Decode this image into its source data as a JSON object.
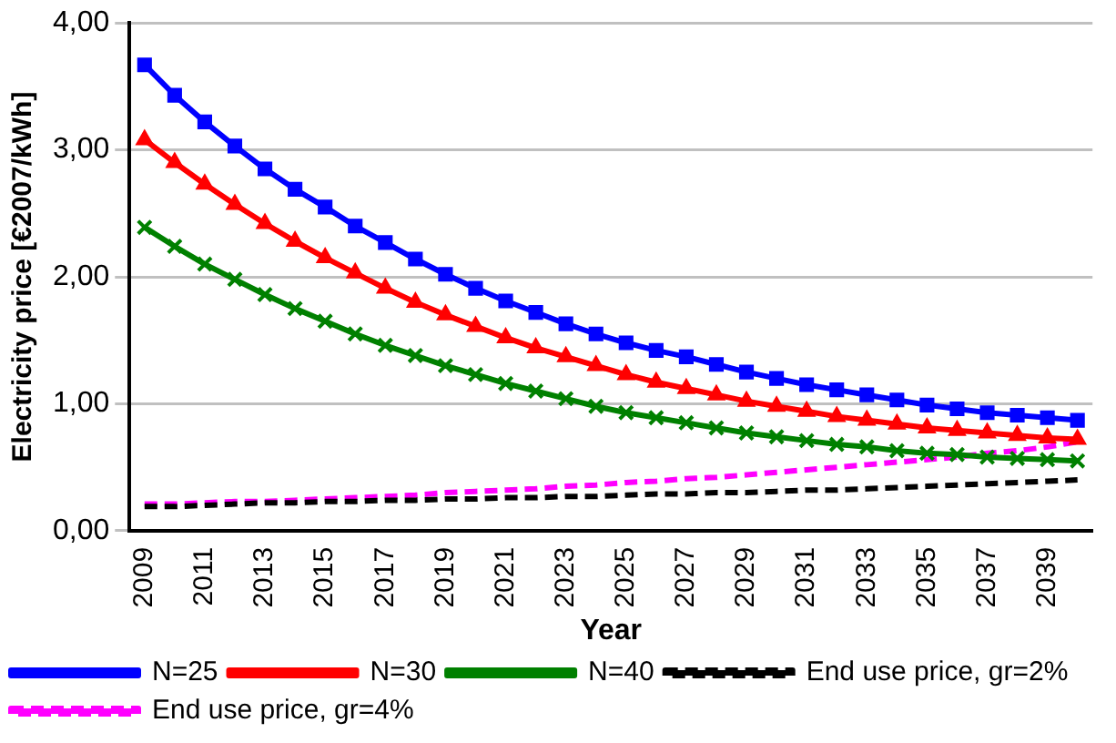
{
  "chart_data": {
    "type": "line",
    "xlabel": "Year",
    "ylabel": "Electricity price [€2007/kWh]",
    "categories": [
      "2009",
      null,
      "2011",
      null,
      "2013",
      null,
      "2015",
      null,
      "2017",
      null,
      "2019",
      null,
      "2021",
      null,
      "2023",
      null,
      "2025",
      null,
      "2027",
      null,
      "2029",
      null,
      "2031",
      null,
      "2033",
      null,
      "2035",
      null,
      "2037",
      null,
      "2039",
      null
    ],
    "ylim": [
      0,
      4
    ],
    "yticks": [
      {
        "value": 0,
        "label": "0,00"
      },
      {
        "value": 1,
        "label": "1,00"
      },
      {
        "value": 2,
        "label": "2,00"
      },
      {
        "value": 3,
        "label": "3,00"
      },
      {
        "value": 4,
        "label": "4,00"
      }
    ],
    "grid": "y",
    "legend": "bottom",
    "series": [
      {
        "name": "N=25",
        "color": "#0000ff",
        "marker": "square",
        "line_style": "solid",
        "values": [
          3.67,
          3.43,
          3.22,
          3.03,
          2.85,
          2.69,
          2.55,
          2.4,
          2.27,
          2.14,
          2.02,
          1.91,
          1.81,
          1.72,
          1.63,
          1.55,
          1.48,
          1.42,
          1.37,
          1.31,
          1.25,
          1.2,
          1.15,
          1.11,
          1.07,
          1.03,
          0.99,
          0.96,
          0.93,
          0.91,
          0.89,
          0.87
        ]
      },
      {
        "name": "N=30",
        "color": "#ff0000",
        "marker": "triangle",
        "line_style": "solid",
        "values": [
          3.08,
          2.9,
          2.73,
          2.57,
          2.42,
          2.28,
          2.15,
          2.03,
          1.91,
          1.8,
          1.7,
          1.61,
          1.52,
          1.44,
          1.37,
          1.3,
          1.23,
          1.17,
          1.12,
          1.07,
          1.02,
          0.98,
          0.94,
          0.9,
          0.87,
          0.84,
          0.81,
          0.79,
          0.77,
          0.75,
          0.73,
          0.72
        ]
      },
      {
        "name": "N=40",
        "color": "#008000",
        "marker": "cross",
        "line_style": "solid",
        "values": [
          2.39,
          2.24,
          2.1,
          1.98,
          1.86,
          1.75,
          1.65,
          1.55,
          1.46,
          1.38,
          1.3,
          1.23,
          1.16,
          1.1,
          1.04,
          0.98,
          0.93,
          0.89,
          0.85,
          0.81,
          0.77,
          0.74,
          0.71,
          0.68,
          0.66,
          0.63,
          0.61,
          0.6,
          0.58,
          0.57,
          0.56,
          0.55
        ]
      },
      {
        "name": "End use price, gr=2%",
        "color": "#000000",
        "marker": "none",
        "line_style": "dashed",
        "values": [
          0.19,
          0.19,
          0.2,
          0.21,
          0.22,
          0.22,
          0.23,
          0.23,
          0.24,
          0.24,
          0.25,
          0.25,
          0.26,
          0.26,
          0.27,
          0.27,
          0.28,
          0.29,
          0.29,
          0.3,
          0.3,
          0.31,
          0.32,
          0.32,
          0.33,
          0.34,
          0.35,
          0.36,
          0.37,
          0.38,
          0.39,
          0.4
        ]
      },
      {
        "name": "End use price, gr=4%",
        "color": "#ff00ff",
        "marker": "none",
        "line_style": "dashed",
        "values": [
          0.21,
          0.21,
          0.22,
          0.23,
          0.23,
          0.24,
          0.25,
          0.26,
          0.27,
          0.28,
          0.3,
          0.31,
          0.32,
          0.33,
          0.35,
          0.36,
          0.38,
          0.39,
          0.41,
          0.42,
          0.44,
          0.46,
          0.48,
          0.5,
          0.52,
          0.54,
          0.56,
          0.58,
          0.61,
          0.63,
          0.66,
          0.7
        ]
      }
    ]
  }
}
